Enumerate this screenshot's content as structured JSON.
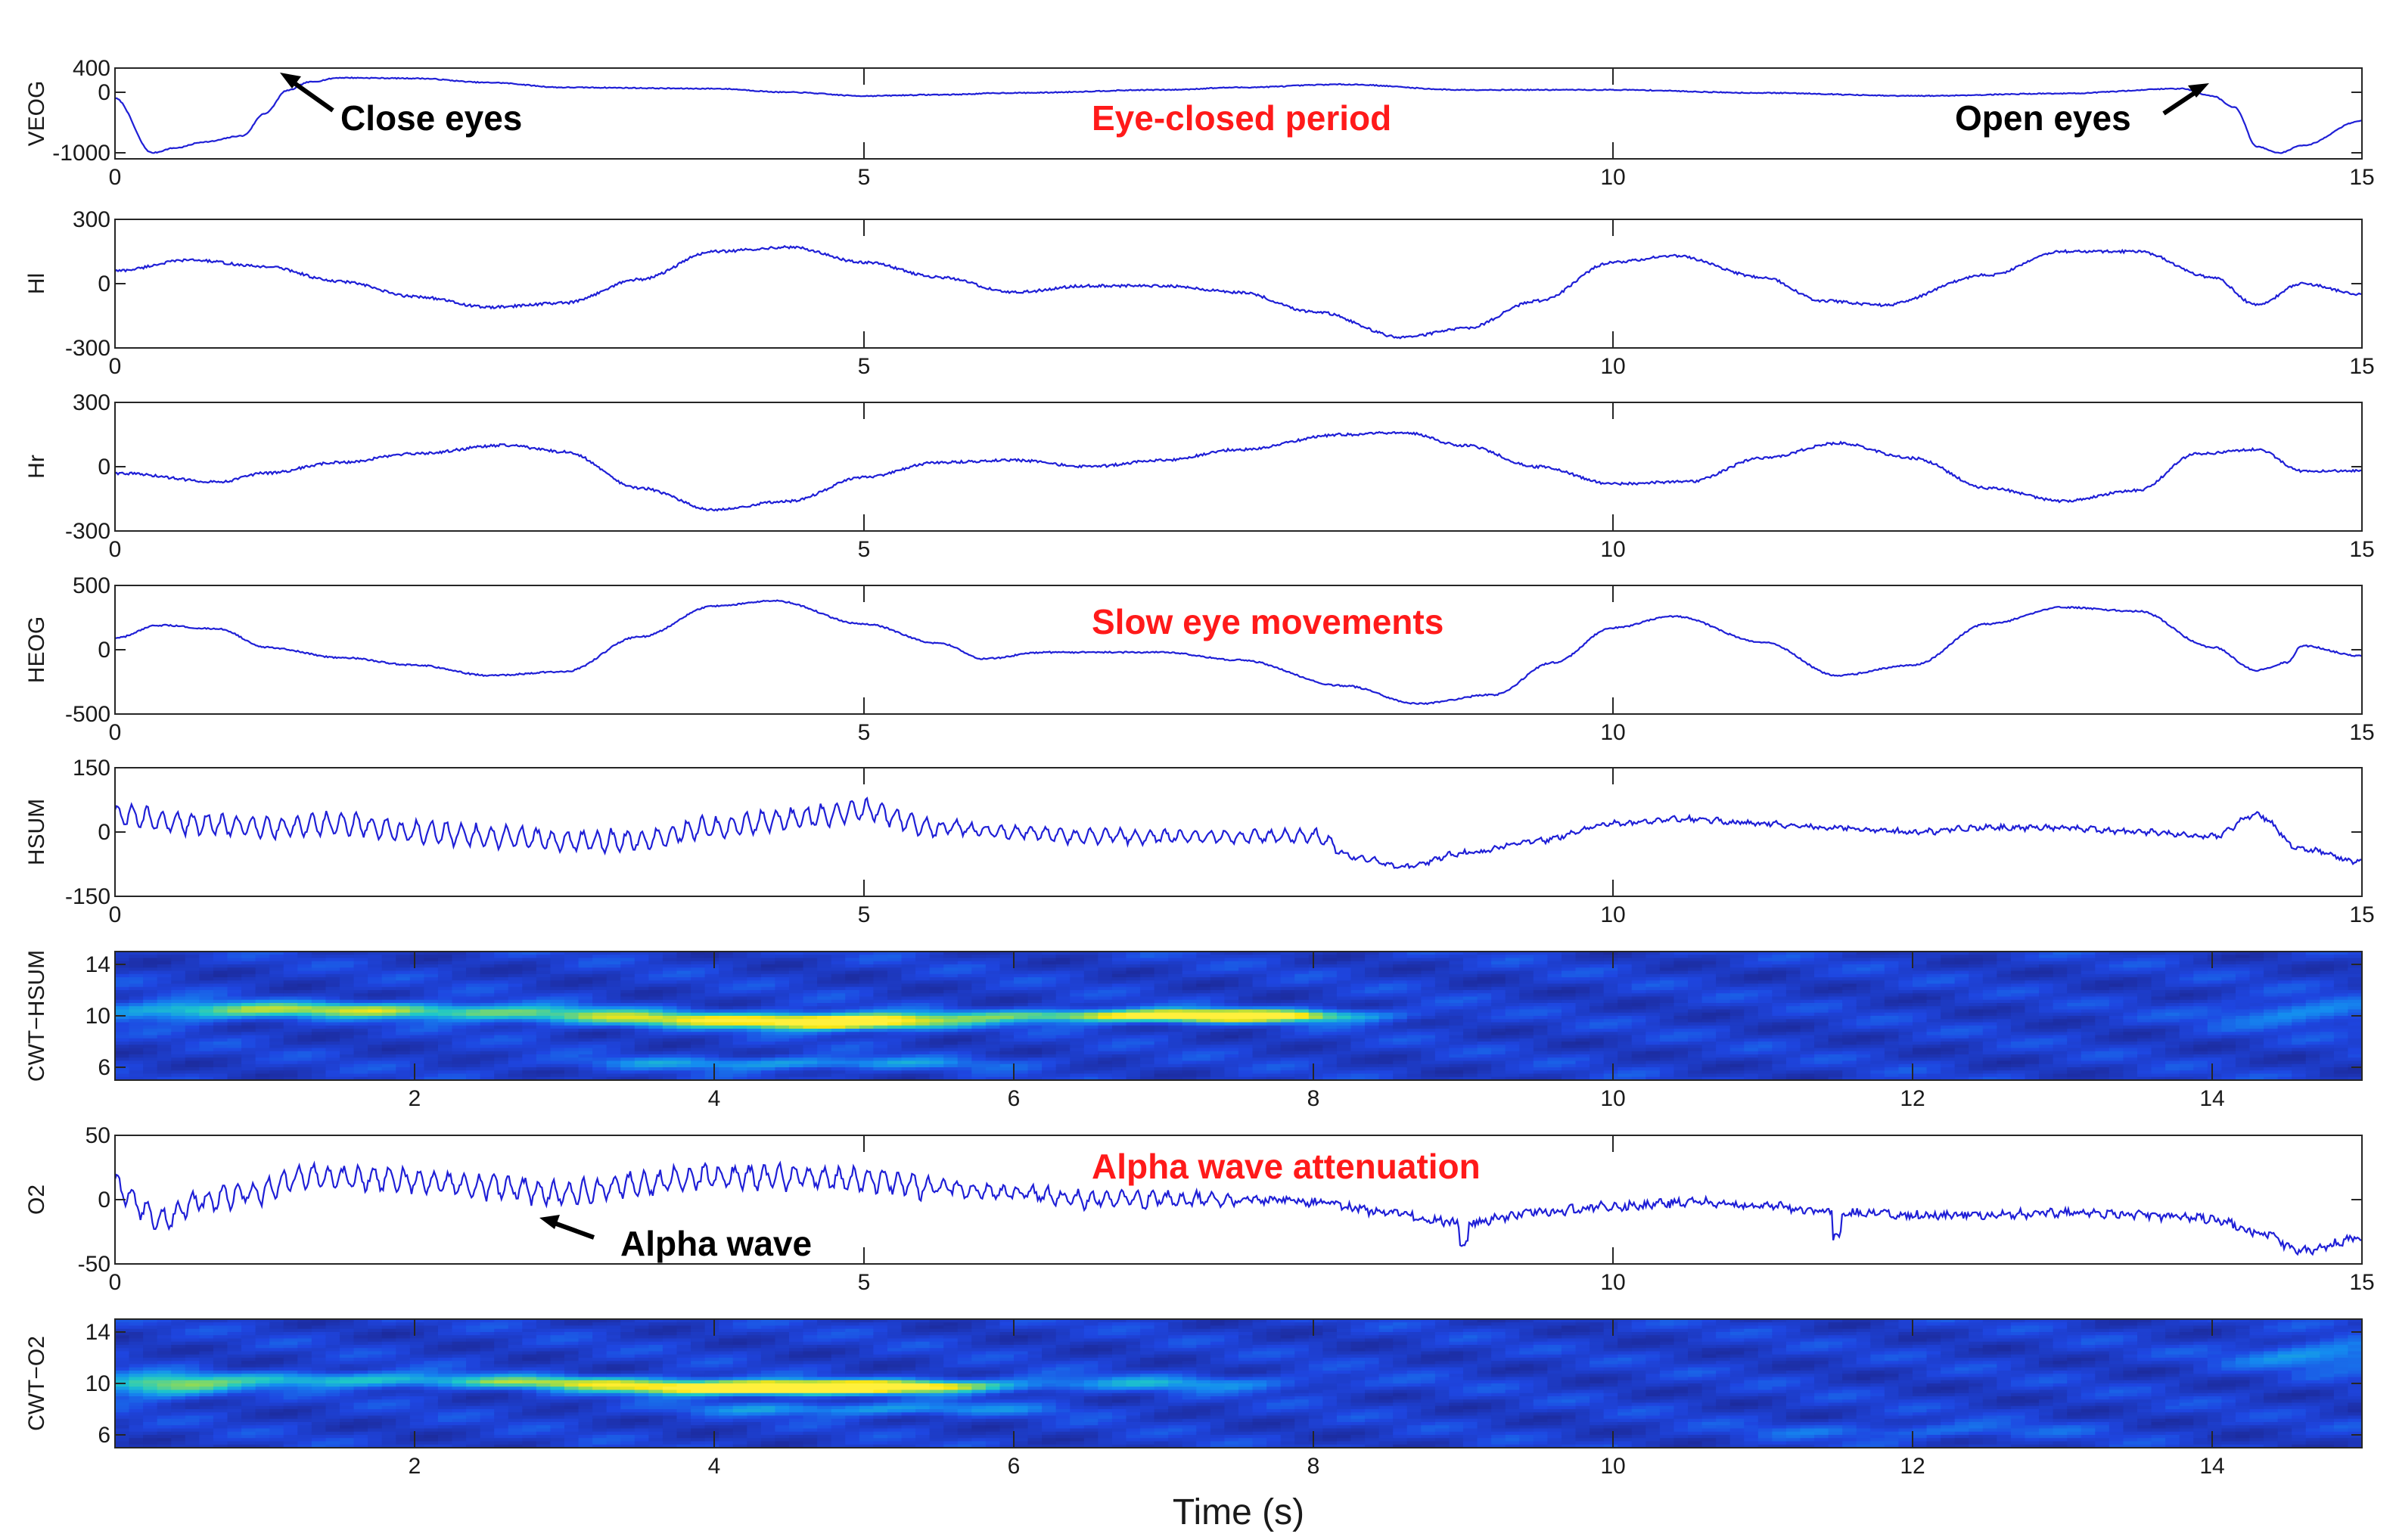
{
  "chart_data": [
    {
      "type": "line",
      "id": "veog",
      "ylabel": "VEOG",
      "ylim": [
        -1100,
        400
      ],
      "yticks": [
        400,
        0,
        -1000
      ],
      "xlim": [
        0,
        15
      ],
      "xticks": [
        0,
        5,
        10,
        15
      ],
      "series_color": "#1f1fd6",
      "keypoints": [
        [
          0,
          -100
        ],
        [
          0.25,
          -1000
        ],
        [
          0.4,
          -920
        ],
        [
          0.6,
          -820
        ],
        [
          0.85,
          -720
        ],
        [
          1.0,
          -350
        ],
        [
          1.15,
          30
        ],
        [
          1.3,
          170
        ],
        [
          1.5,
          240
        ],
        [
          2.0,
          230
        ],
        [
          2.5,
          160
        ],
        [
          3.0,
          80
        ],
        [
          4.0,
          60
        ],
        [
          4.5,
          0
        ],
        [
          5.0,
          -60
        ],
        [
          5.5,
          -40
        ],
        [
          6.0,
          -10
        ],
        [
          7.0,
          40
        ],
        [
          7.5,
          80
        ],
        [
          8.2,
          130
        ],
        [
          9.0,
          40
        ],
        [
          10.0,
          40
        ],
        [
          11.0,
          -10
        ],
        [
          12.0,
          -60
        ],
        [
          13.0,
          -20
        ],
        [
          13.8,
          60
        ],
        [
          14.0,
          -60
        ],
        [
          14.15,
          -250
        ],
        [
          14.3,
          -900
        ],
        [
          14.45,
          -1000
        ],
        [
          14.6,
          -880
        ],
        [
          15.0,
          -470
        ]
      ],
      "noise": 8,
      "annotations": [
        {
          "label": "Close eyes",
          "color": "black"
        },
        {
          "label": "Eye-closed period",
          "color": "red"
        },
        {
          "label": "Open eyes",
          "color": "black"
        }
      ]
    },
    {
      "type": "line",
      "id": "hl",
      "ylabel": "Hl",
      "ylim": [
        -300,
        300
      ],
      "yticks": [
        300,
        0,
        -300
      ],
      "xlim": [
        0,
        15
      ],
      "xticks": [
        0,
        5,
        10,
        15
      ],
      "series_color": "#1f1fd6",
      "keypoints": [
        [
          0,
          60
        ],
        [
          0.5,
          110
        ],
        [
          1.0,
          80
        ],
        [
          1.5,
          10
        ],
        [
          2.0,
          -60
        ],
        [
          2.5,
          -110
        ],
        [
          3.0,
          -90
        ],
        [
          3.5,
          20
        ],
        [
          4.0,
          150
        ],
        [
          4.5,
          170
        ],
        [
          5.0,
          100
        ],
        [
          5.5,
          30
        ],
        [
          6.0,
          -40
        ],
        [
          6.5,
          -10
        ],
        [
          7.0,
          -10
        ],
        [
          7.5,
          -40
        ],
        [
          8.0,
          -130
        ],
        [
          8.6,
          -250
        ],
        [
          9.0,
          -210
        ],
        [
          9.5,
          -80
        ],
        [
          10.0,
          100
        ],
        [
          10.4,
          130
        ],
        [
          11.0,
          30
        ],
        [
          11.4,
          -80
        ],
        [
          11.8,
          -100
        ],
        [
          12.5,
          40
        ],
        [
          13.0,
          150
        ],
        [
          13.5,
          150
        ],
        [
          14.0,
          30
        ],
        [
          14.3,
          -100
        ],
        [
          14.6,
          0
        ],
        [
          15.0,
          -50
        ]
      ],
      "noise": 6
    },
    {
      "type": "line",
      "id": "hr",
      "ylabel": "Hr",
      "ylim": [
        -300,
        300
      ],
      "yticks": [
        300,
        0,
        -300
      ],
      "xlim": [
        0,
        15
      ],
      "xticks": [
        0,
        5,
        10,
        15
      ],
      "series_color": "#1f1fd6",
      "keypoints": [
        [
          0,
          -30
        ],
        [
          0.7,
          -70
        ],
        [
          1.0,
          -30
        ],
        [
          1.5,
          20
        ],
        [
          2.0,
          60
        ],
        [
          2.6,
          100
        ],
        [
          3.0,
          70
        ],
        [
          3.5,
          -100
        ],
        [
          4.0,
          -200
        ],
        [
          4.5,
          -160
        ],
        [
          5.0,
          -50
        ],
        [
          5.5,
          20
        ],
        [
          6.0,
          30
        ],
        [
          6.5,
          0
        ],
        [
          7.0,
          30
        ],
        [
          7.5,
          80
        ],
        [
          8.2,
          150
        ],
        [
          8.6,
          160
        ],
        [
          9.0,
          100
        ],
        [
          9.5,
          0
        ],
        [
          10.0,
          -80
        ],
        [
          10.5,
          -70
        ],
        [
          11.0,
          40
        ],
        [
          11.5,
          110
        ],
        [
          12.0,
          40
        ],
        [
          12.5,
          -100
        ],
        [
          13.0,
          -160
        ],
        [
          13.5,
          -110
        ],
        [
          13.9,
          60
        ],
        [
          14.3,
          80
        ],
        [
          14.6,
          -20
        ],
        [
          15.0,
          -20
        ]
      ],
      "noise": 6
    },
    {
      "type": "line",
      "id": "heog",
      "ylabel": "HEOG",
      "ylim": [
        -500,
        500
      ],
      "yticks": [
        500,
        0,
        -500
      ],
      "xlim": [
        0,
        15
      ],
      "xticks": [
        0,
        5,
        10,
        15
      ],
      "series_color": "#1f1fd6",
      "keypoints": [
        [
          0,
          90
        ],
        [
          0.3,
          190
        ],
        [
          0.7,
          160
        ],
        [
          1.0,
          20
        ],
        [
          1.5,
          -60
        ],
        [
          2.0,
          -120
        ],
        [
          2.5,
          -200
        ],
        [
          3.0,
          -170
        ],
        [
          3.5,
          100
        ],
        [
          4.0,
          340
        ],
        [
          4.4,
          380
        ],
        [
          5.0,
          200
        ],
        [
          5.5,
          50
        ],
        [
          5.8,
          -70
        ],
        [
          6.2,
          -20
        ],
        [
          7.0,
          -20
        ],
        [
          7.5,
          -80
        ],
        [
          8.2,
          -280
        ],
        [
          8.7,
          -420
        ],
        [
          9.2,
          -350
        ],
        [
          9.6,
          -100
        ],
        [
          10.0,
          170
        ],
        [
          10.4,
          260
        ],
        [
          11.0,
          60
        ],
        [
          11.5,
          -200
        ],
        [
          12.0,
          -120
        ],
        [
          12.5,
          200
        ],
        [
          13.0,
          330
        ],
        [
          13.5,
          300
        ],
        [
          14.0,
          20
        ],
        [
          14.3,
          -160
        ],
        [
          14.5,
          -100
        ],
        [
          14.6,
          30
        ],
        [
          15.0,
          -50
        ]
      ],
      "noise": 6,
      "annotations": [
        {
          "label": "Slow eye movements",
          "color": "red"
        }
      ]
    },
    {
      "type": "line",
      "id": "hsum",
      "ylabel": "HSUM",
      "ylim": [
        -150,
        150
      ],
      "yticks": [
        150,
        0,
        -150
      ],
      "xlim": [
        0,
        15
      ],
      "xticks": [
        0,
        5,
        10,
        15
      ],
      "series_color": "#1f1fd6",
      "keypoints": [
        [
          0,
          40
        ],
        [
          0.5,
          20
        ],
        [
          1.0,
          10
        ],
        [
          1.5,
          20
        ],
        [
          2.0,
          0
        ],
        [
          2.5,
          -10
        ],
        [
          3.0,
          -20
        ],
        [
          3.5,
          -20
        ],
        [
          4.0,
          10
        ],
        [
          4.5,
          30
        ],
        [
          5.0,
          50
        ],
        [
          5.5,
          10
        ],
        [
          6.0,
          0
        ],
        [
          6.5,
          -10
        ],
        [
          7.0,
          -10
        ],
        [
          7.5,
          -10
        ],
        [
          8.0,
          -10
        ],
        [
          8.3,
          -60
        ],
        [
          8.6,
          -80
        ],
        [
          9.0,
          -50
        ],
        [
          9.5,
          -20
        ],
        [
          10.0,
          20
        ],
        [
          10.5,
          30
        ],
        [
          11.0,
          20
        ],
        [
          11.5,
          10
        ],
        [
          12.0,
          0
        ],
        [
          12.5,
          10
        ],
        [
          13.0,
          10
        ],
        [
          13.5,
          0
        ],
        [
          14.0,
          -10
        ],
        [
          14.3,
          40
        ],
        [
          14.6,
          -40
        ],
        [
          15.0,
          -70
        ]
      ],
      "alpha_amp": 28,
      "noise": 5
    },
    {
      "type": "heatmap",
      "id": "cwt_hsum",
      "ylabel": "CWT−HSUM",
      "ylim": [
        5,
        15
      ],
      "yticks": [
        14,
        10,
        6
      ],
      "xlim": [
        0,
        15
      ],
      "xticks": [
        2,
        4,
        6,
        8,
        10,
        12,
        14
      ],
      "blobs": [
        [
          1.5,
          10.5,
          0.9,
          0.6,
          0.55
        ],
        [
          2.7,
          10.2,
          0.9,
          0.6,
          0.45
        ],
        [
          4.9,
          9.5,
          0.7,
          0.6,
          1.0
        ],
        [
          3.8,
          9.7,
          0.9,
          0.6,
          0.55
        ],
        [
          6.8,
          10.0,
          1.2,
          0.5,
          0.7
        ],
        [
          7.6,
          10.0,
          0.8,
          0.5,
          0.55
        ],
        [
          4.5,
          6.3,
          1.4,
          0.5,
          0.35
        ],
        [
          0.4,
          10.3,
          0.6,
          0.8,
          0.4
        ],
        [
          14.6,
          10.2,
          0.6,
          1.0,
          0.3
        ]
      ]
    },
    {
      "type": "line",
      "id": "o2",
      "ylabel": "O2",
      "ylim": [
        -50,
        50
      ],
      "yticks": [
        50,
        0,
        -50
      ],
      "xlim": [
        0,
        15
      ],
      "xticks": [
        0,
        5,
        10,
        15
      ],
      "series_color": "#1f1fd6",
      "keypoints": [
        [
          0,
          10
        ],
        [
          0.3,
          -15
        ],
        [
          0.6,
          0
        ],
        [
          0.9,
          5
        ],
        [
          1.3,
          18
        ],
        [
          2.0,
          15
        ],
        [
          2.5,
          10
        ],
        [
          3.0,
          5
        ],
        [
          3.5,
          12
        ],
        [
          4.0,
          18
        ],
        [
          4.5,
          18
        ],
        [
          5.0,
          15
        ],
        [
          5.5,
          10
        ],
        [
          6.0,
          5
        ],
        [
          6.5,
          0
        ],
        [
          7.0,
          0
        ],
        [
          7.5,
          0
        ],
        [
          8.0,
          -2
        ],
        [
          8.5,
          -10
        ],
        [
          9.0,
          -18
        ],
        [
          9.5,
          -10
        ],
        [
          10.0,
          -5
        ],
        [
          10.5,
          -2
        ],
        [
          11.0,
          -5
        ],
        [
          11.5,
          -10
        ],
        [
          12.0,
          -12
        ],
        [
          12.5,
          -12
        ],
        [
          13.0,
          -10
        ],
        [
          13.5,
          -12
        ],
        [
          14.0,
          -15
        ],
        [
          14.3,
          -25
        ],
        [
          14.6,
          -40
        ],
        [
          15.0,
          -30
        ]
      ],
      "alpha_amp": 10,
      "noise": 3,
      "annotations": [
        {
          "label": "Alpha wave attenuation",
          "color": "red"
        },
        {
          "label": "Alpha wave",
          "color": "black"
        }
      ]
    },
    {
      "type": "heatmap",
      "id": "cwt_o2",
      "ylabel": "CWT−O2",
      "ylim": [
        5,
        15
      ],
      "yticks": [
        14,
        10,
        6
      ],
      "xlim": [
        0,
        15
      ],
      "xticks": [
        2,
        4,
        6,
        8,
        10,
        12,
        14
      ],
      "blobs": [
        [
          0.3,
          9.8,
          0.5,
          0.9,
          0.6
        ],
        [
          1.5,
          10.3,
          0.8,
          0.6,
          0.45
        ],
        [
          3.0,
          10.1,
          0.9,
          0.5,
          0.55
        ],
        [
          4.7,
          9.7,
          0.8,
          0.5,
          0.95
        ],
        [
          4.0,
          9.6,
          0.8,
          0.5,
          0.7
        ],
        [
          5.5,
          9.8,
          0.6,
          0.5,
          0.4
        ],
        [
          7.0,
          10.0,
          1.2,
          0.6,
          0.3
        ],
        [
          5.0,
          8.0,
          1.2,
          0.5,
          0.35
        ],
        [
          14.8,
          12.2,
          0.6,
          1.0,
          0.35
        ],
        [
          12.0,
          6.3,
          1.0,
          0.6,
          0.2
        ]
      ]
    }
  ],
  "xlabel": "Time (s)"
}
